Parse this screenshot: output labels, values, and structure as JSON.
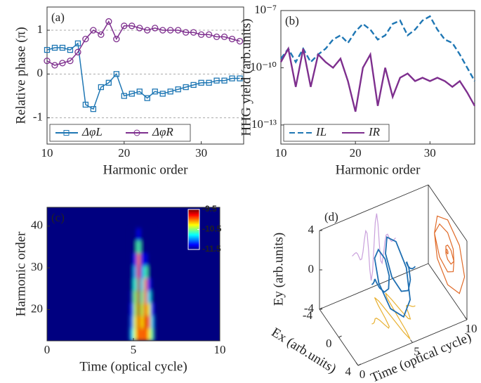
{
  "chart_data": [
    {
      "type": "line",
      "label": "(a)",
      "xlabel": "Harmonic order",
      "ylabel": "Relative phase (π)",
      "x": [
        10,
        11,
        12,
        13,
        14,
        15,
        16,
        17,
        18,
        19,
        20,
        21,
        22,
        23,
        24,
        25,
        26,
        27,
        28,
        29,
        30,
        31,
        32,
        33,
        34,
        35
      ],
      "series": [
        {
          "name": "ΔφL",
          "color": "#1f77b4",
          "marker": "square",
          "values": [
            0.55,
            0.6,
            0.6,
            0.55,
            0.7,
            -0.7,
            -0.8,
            -0.3,
            -0.2,
            0.0,
            -0.5,
            -0.45,
            -0.4,
            -0.55,
            -0.4,
            -0.45,
            -0.4,
            -0.35,
            -0.3,
            -0.25,
            -0.2,
            -0.2,
            -0.15,
            -0.15,
            -0.1,
            -0.1
          ]
        },
        {
          "name": "ΔφR",
          "color": "#7e2f8e",
          "marker": "circle",
          "values": [
            0.3,
            0.2,
            0.25,
            0.3,
            0.5,
            0.8,
            1.0,
            0.9,
            1.2,
            0.8,
            1.1,
            1.1,
            1.05,
            1.0,
            1.05,
            1.0,
            1.0,
            1.0,
            0.95,
            0.95,
            0.9,
            0.9,
            0.85,
            0.85,
            0.8,
            0.75
          ]
        }
      ],
      "xlim": [
        10,
        35.5
      ],
      "xticks": [
        10,
        20,
        30
      ],
      "ylim": [
        -1.6,
        1.53
      ],
      "yticks": [
        -1,
        0,
        1
      ],
      "grid": true,
      "legend": "lower left"
    },
    {
      "type": "line",
      "label": "(b)",
      "xlabel": "Harmonic order",
      "ylabel": "HHG yield (arb.units)",
      "log_y": true,
      "x": [
        10,
        11,
        12,
        13,
        14,
        15,
        16,
        17,
        18,
        19,
        20,
        21,
        22,
        23,
        24,
        25,
        26,
        27,
        28,
        29,
        30,
        31,
        32,
        33,
        34,
        35,
        36
      ],
      "series": [
        {
          "name": "IL",
          "color": "#1f77b4",
          "linestyle": "dashed",
          "values": [
            3e-10,
            1e-09,
            2e-10,
            1e-09,
            2e-10,
            5e-10,
            1e-09,
            3e-09,
            5e-09,
            2e-09,
            8e-09,
            2e-08,
            1e-08,
            3e-09,
            5e-09,
            2e-08,
            3e-08,
            5e-09,
            1e-08,
            3e-08,
            5e-08,
            1e-08,
            3e-09,
            2e-09,
            5e-10,
            1e-10,
            2e-11
          ]
        },
        {
          "name": "IR",
          "color": "#7e2f8e",
          "linestyle": "solid",
          "values": [
            2e-10,
            1e-09,
            1e-11,
            1e-09,
            1e-11,
            5e-10,
            2e-10,
            1e-10,
            3e-10,
            2e-11,
            5e-13,
            1e-10,
            5e-10,
            1e-12,
            1e-10,
            3e-12,
            3e-11,
            5e-11,
            2e-11,
            3e-11,
            2e-11,
            3e-11,
            2e-11,
            1e-11,
            2e-11,
            5e-12,
            1e-12
          ]
        }
      ],
      "xlim": [
        10,
        36
      ],
      "xticks": [
        10,
        20,
        30
      ],
      "ylim": [
        1e-14,
        1e-07
      ],
      "yticks": [
        {
          "value": 1e-07,
          "label": "10⁻⁷"
        },
        {
          "value": 1e-10,
          "label": "10⁻¹⁰"
        },
        {
          "value": 1e-13,
          "label": "10⁻¹³"
        }
      ],
      "legend": "lower left"
    },
    {
      "type": "heatmap",
      "label": "(c)",
      "xlabel": "Time (optical cycle)",
      "ylabel": "Harmonic order",
      "x": [
        4.9,
        5.1,
        5.3,
        5.5,
        5.7,
        5.9,
        6.1
      ],
      "y": [
        14,
        17,
        20,
        23,
        26,
        29,
        32,
        35,
        38
      ],
      "z": [
        [
          -10.8,
          -10.3,
          -9.8,
          -10.0,
          -9.8,
          -10.2,
          -10.6
        ],
        [
          -11.0,
          -10.3,
          -9.7,
          -10.2,
          -9.7,
          -10.0,
          -10.8
        ],
        [
          -11.2,
          -10.4,
          -9.6,
          -10.4,
          -9.8,
          -10.3,
          -11.2
        ],
        [
          -11.4,
          -10.5,
          -9.6,
          -10.6,
          -9.9,
          -10.8,
          -11.5
        ],
        [
          -11.5,
          -10.7,
          -9.6,
          -10.8,
          -10.0,
          -11.2,
          -11.5
        ],
        [
          -11.5,
          -10.9,
          -9.7,
          -11.0,
          -10.6,
          -11.5,
          -11.5
        ],
        [
          -11.5,
          -11.2,
          -10.0,
          -11.3,
          -11.3,
          -11.5,
          -11.5
        ],
        [
          -11.5,
          -11.5,
          -10.6,
          -11.5,
          -11.5,
          -11.5,
          -11.5
        ],
        [
          -11.5,
          -11.5,
          -11.3,
          -11.5,
          -11.5,
          -11.5,
          -11.5
        ]
      ],
      "xlim": [
        0,
        10
      ],
      "xticks": [
        0,
        5,
        10
      ],
      "ylim": [
        12.5,
        44.5
      ],
      "yticks": [
        20,
        30,
        40
      ],
      "zlim": [
        -11.5,
        -9.5
      ],
      "colorbar_ticks": [
        -9.5,
        -10.5,
        -11.5
      ],
      "colormap": "jet"
    },
    {
      "type": "line3d",
      "label": "(d)",
      "tlabel": "Time (optical cycle)",
      "exlabel": "Ex (arb.units)",
      "eylabel": "Ey (arb.units)",
      "t": [
        3,
        3.125,
        3.25,
        3.375,
        3.5,
        3.625,
        3.75,
        3.875,
        4,
        4.125,
        4.25,
        4.375,
        4.5,
        4.625,
        4.75,
        4.875,
        5,
        5.125,
        5.25,
        5.375,
        5.5,
        5.625,
        5.75,
        5.875,
        6,
        6.125,
        6.25,
        6.375,
        6.5,
        6.625,
        6.75,
        6.875,
        7
      ],
      "ex": [
        0.06,
        0.07,
        0,
        -0.18,
        -0.37,
        -0.37,
        0,
        0.7,
        1.29,
        1.15,
        0,
        -1.68,
        -2.73,
        -2.15,
        0,
        2.44,
        3.5,
        2.44,
        0,
        -2.15,
        -2.73,
        -1.68,
        0,
        1.15,
        1.29,
        0.7,
        0,
        -0.37,
        -0.37,
        -0.18,
        0,
        0.07,
        0.06
      ],
      "ey": [
        0,
        0.07,
        0.16,
        0.18,
        0,
        -0.37,
        -0.73,
        -0.7,
        0,
        1.15,
        1.99,
        1.68,
        0,
        -2.15,
        -3.29,
        -2.44,
        0,
        2.44,
        3.29,
        2.15,
        0,
        -1.68,
        -1.99,
        -1.15,
        0,
        0.7,
        0.73,
        0.37,
        0,
        -0.18,
        -0.16,
        -0.07,
        0
      ],
      "color": "#1f6fb2",
      "projection_colors": {
        "ey_time": "#c9a0dc",
        "ex_time": "#e8b030",
        "ex_ey": "#e06a28"
      },
      "tlim": [
        0,
        10
      ],
      "tticks": [
        0,
        5,
        10
      ],
      "exlim": [
        -4,
        4
      ],
      "exticks": [
        -4,
        0,
        4
      ],
      "eylim": [
        -4,
        4
      ],
      "eyticks": [
        -4,
        0,
        4
      ]
    }
  ]
}
